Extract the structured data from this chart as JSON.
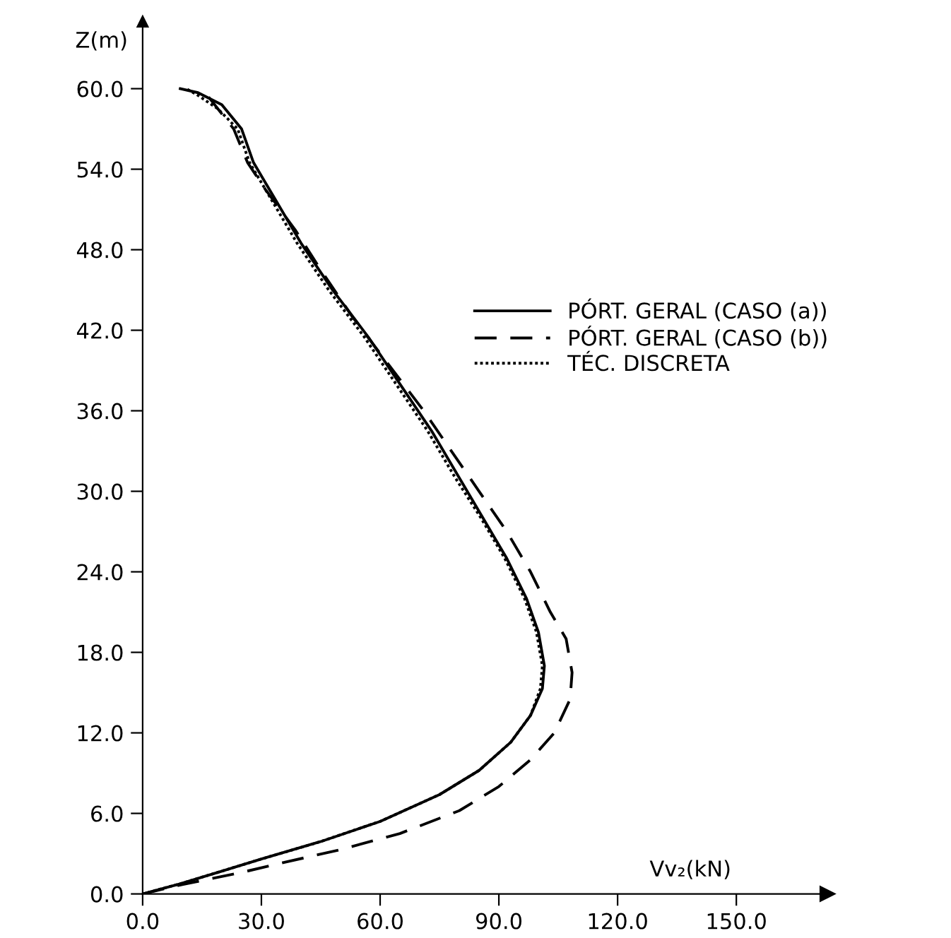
{
  "chart_data": {
    "type": "line",
    "xlabel": "Vv₂(kN)",
    "ylabel": "Z(m)",
    "legend": "right",
    "grid": false,
    "marker": "none",
    "xlim": [
      0,
      173
    ],
    "ylim": [
      0,
      65
    ],
    "xticks": [
      {
        "value": 0,
        "label": "0.0"
      },
      {
        "value": 30,
        "label": "30.0"
      },
      {
        "value": 60,
        "label": "60.0"
      },
      {
        "value": 90,
        "label": "90.0"
      },
      {
        "value": 120,
        "label": "120.0"
      },
      {
        "value": 150,
        "label": "150.0"
      }
    ],
    "yticks": [
      {
        "value": 0,
        "label": "0.0"
      },
      {
        "value": 6,
        "label": "6.0"
      },
      {
        "value": 12,
        "label": "12.0"
      },
      {
        "value": 18,
        "label": "18.0"
      },
      {
        "value": 24,
        "label": "24.0"
      },
      {
        "value": 30,
        "label": "30.0"
      },
      {
        "value": 36,
        "label": "36.0"
      },
      {
        "value": 42,
        "label": "42.0"
      },
      {
        "value": 48,
        "label": "48.0"
      },
      {
        "value": 54,
        "label": "54.0"
      },
      {
        "value": 60,
        "label": "60.0"
      }
    ],
    "series": [
      {
        "name": "PÓRT. GERAL (CASO (a))",
        "color": "#000000",
        "line_style": "solid",
        "x": [
          0,
          10,
          20,
          30,
          45,
          60,
          75,
          85,
          93,
          98,
          101,
          101.5,
          100,
          97,
          92,
          86,
          80,
          73,
          65,
          57,
          48,
          40,
          33,
          28,
          25,
          20,
          14,
          9.5
        ],
        "values": [
          0,
          0.8,
          1.7,
          2.6,
          3.9,
          5.4,
          7.4,
          9.2,
          11.3,
          13.3,
          15.3,
          17,
          19.5,
          22,
          25,
          28,
          31,
          34.5,
          38,
          41.5,
          45,
          48.5,
          52,
          54.5,
          57,
          58.8,
          59.7,
          60
        ]
      },
      {
        "name": "PÓRT. GERAL (CASO (b))",
        "color": "#000000",
        "line_style": "dashed",
        "x": [
          0,
          10,
          25,
          35,
          50,
          65,
          80,
          90,
          98,
          104,
          108,
          108.5,
          107,
          103,
          98,
          92,
          85,
          78,
          71,
          62,
          53,
          45,
          38.5,
          31,
          26.5,
          23,
          19,
          15
        ],
        "values": [
          0,
          0.7,
          1.6,
          2.3,
          3.3,
          4.5,
          6.2,
          8,
          10,
          12,
          14.5,
          16.5,
          19,
          21,
          24,
          27,
          30,
          33,
          36,
          39.5,
          43,
          46.5,
          49.5,
          52.5,
          54.5,
          57,
          58.5,
          60
        ]
      },
      {
        "name": "TÉC. DISCRETA",
        "color": "#000000",
        "line_style": "dotted",
        "x": [
          0,
          10,
          20,
          30,
          45,
          60,
          75,
          85,
          93,
          98,
          100.5,
          101,
          99.5,
          96.5,
          91.5,
          85.5,
          79,
          72,
          64,
          56,
          47,
          39,
          32,
          27,
          24,
          19,
          14,
          11
        ],
        "values": [
          0,
          0.8,
          1.7,
          2.6,
          3.9,
          5.4,
          7.4,
          9.2,
          11.3,
          13.3,
          15.3,
          17,
          19.5,
          22,
          25,
          28,
          31,
          34.5,
          38,
          41.5,
          45,
          48.5,
          52,
          54.5,
          57,
          58.5,
          59.5,
          60
        ]
      }
    ]
  }
}
